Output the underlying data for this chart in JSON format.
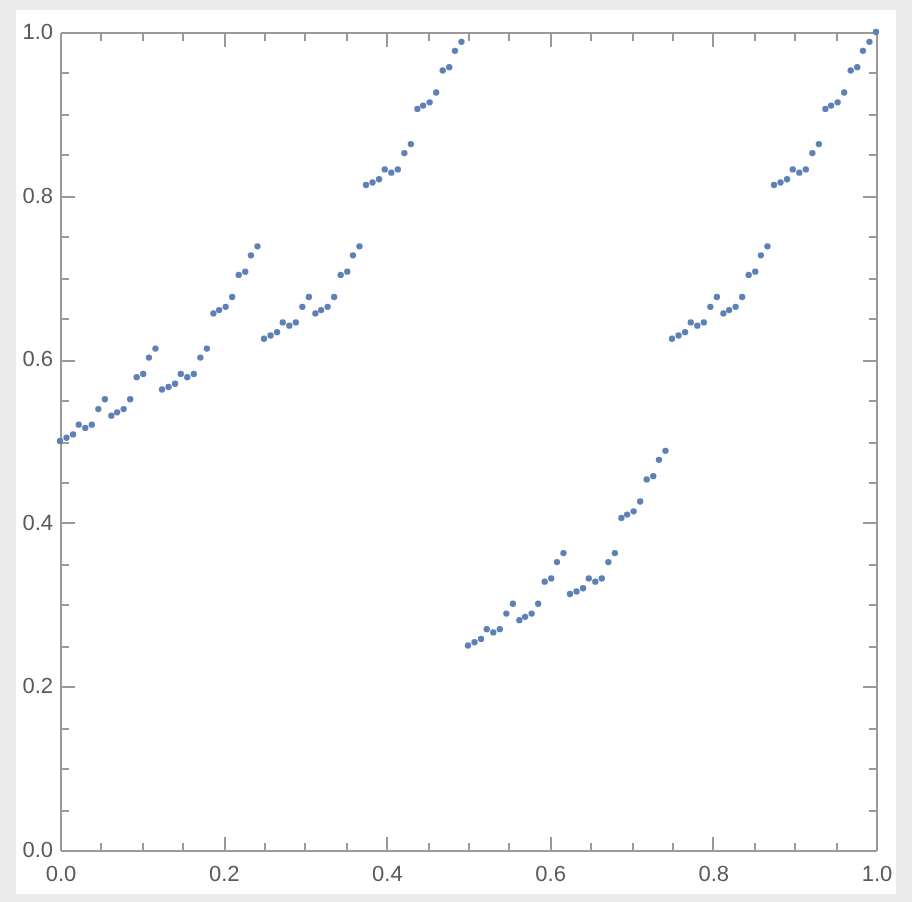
{
  "chart_data": {
    "type": "scatter",
    "marker": "circle",
    "xlim": [
      0,
      1
    ],
    "ylim": [
      0,
      1
    ],
    "xticks": [
      {
        "value": 0,
        "label": "0.0"
      },
      {
        "value": 0.05,
        "label": null
      },
      {
        "value": 0.1,
        "label": null
      },
      {
        "value": 0.15,
        "label": null
      },
      0.2,
      {
        "value": 0.25,
        "label": null
      },
      {
        "value": 0.3,
        "label": null
      },
      {
        "value": 0.35,
        "label": null
      },
      0.4,
      {
        "value": 0.45,
        "label": null
      },
      {
        "value": 0.5,
        "label": null
      },
      {
        "value": 0.55,
        "label": null
      },
      0.6,
      {
        "value": 0.65,
        "label": null
      },
      {
        "value": 0.7,
        "label": null
      },
      {
        "value": 0.75,
        "label": null
      },
      0.8,
      {
        "value": 0.85,
        "label": null
      },
      {
        "value": 0.9,
        "label": null
      },
      {
        "value": 0.95,
        "label": null
      },
      {
        "value": 1,
        "label": "1.0"
      }
    ],
    "yticks": [
      {
        "value": 0,
        "label": "0.0"
      },
      {
        "value": 0.05,
        "label": null
      },
      {
        "value": 0.1,
        "label": null
      },
      {
        "value": 0.15,
        "label": null
      },
      0.2,
      {
        "value": 0.25,
        "label": null
      },
      {
        "value": 0.3,
        "label": null
      },
      {
        "value": 0.35,
        "label": null
      },
      0.4,
      {
        "value": 0.45,
        "label": null
      },
      {
        "value": 0.5,
        "label": null
      },
      {
        "value": 0.55,
        "label": null
      },
      0.6,
      {
        "value": 0.65,
        "label": null
      },
      {
        "value": 0.7,
        "label": null
      },
      {
        "value": 0.75,
        "label": null
      },
      0.8,
      {
        "value": 0.85,
        "label": null
      },
      {
        "value": 0.9,
        "label": null
      },
      {
        "value": 0.95,
        "label": null
      },
      {
        "value": 1,
        "label": "1.0"
      }
    ],
    "series": [
      {
        "color": "#5e81b5",
        "x": [
          0,
          0.008,
          0.016,
          0.023,
          0.031,
          0.039,
          0.047,
          0.055,
          0.063,
          0.07,
          0.078,
          0.086,
          0.094,
          0.102,
          0.109,
          0.117,
          0.125,
          0.133,
          0.141,
          0.148,
          0.156,
          0.164,
          0.172,
          0.18,
          0.188,
          0.195,
          0.203,
          0.211,
          0.219,
          0.227,
          0.234,
          0.242,
          0.25,
          0.258,
          0.266,
          0.273,
          0.281,
          0.289,
          0.297,
          0.305,
          0.313,
          0.32,
          0.328,
          0.336,
          0.344,
          0.352,
          0.359,
          0.367,
          0.375,
          0.383,
          0.391,
          0.398,
          0.406,
          0.414,
          0.422,
          0.43,
          0.438,
          0.445,
          0.453,
          0.461,
          0.469,
          0.477,
          0.484,
          0.492,
          0.5,
          0.508,
          0.516,
          0.523,
          0.531,
          0.539,
          0.547,
          0.555,
          0.563,
          0.57,
          0.578,
          0.586,
          0.594,
          0.602,
          0.609,
          0.617,
          0.625,
          0.633,
          0.641,
          0.648,
          0.656,
          0.664,
          0.672,
          0.68,
          0.688,
          0.695,
          0.703,
          0.711,
          0.719,
          0.727,
          0.734,
          0.742,
          0.75,
          0.758,
          0.766,
          0.773,
          0.781,
          0.789,
          0.797,
          0.805,
          0.813,
          0.82,
          0.828,
          0.836,
          0.844,
          0.852,
          0.859,
          0.867,
          0.875,
          0.883,
          0.891,
          0.898,
          0.906,
          0.914,
          0.922,
          0.93,
          0.938,
          0.945,
          0.953,
          0.961,
          0.969,
          0.977,
          0.984,
          0.992,
          1
        ],
        "values": [
          0.5,
          0.504,
          0.508,
          0.52,
          0.516,
          0.52,
          0.539,
          0.551,
          0.531,
          0.535,
          0.539,
          0.551,
          0.578,
          0.582,
          0.602,
          0.613,
          0.563,
          0.566,
          0.57,
          0.582,
          0.578,
          0.582,
          0.602,
          0.613,
          0.656,
          0.66,
          0.664,
          0.676,
          0.703,
          0.707,
          0.727,
          0.738,
          0.625,
          0.629,
          0.633,
          0.645,
          0.641,
          0.645,
          0.664,
          0.676,
          0.656,
          0.66,
          0.664,
          0.676,
          0.703,
          0.707,
          0.727,
          0.738,
          0.813,
          0.816,
          0.82,
          0.832,
          0.828,
          0.832,
          0.852,
          0.863,
          0.906,
          0.91,
          0.914,
          0.926,
          0.953,
          0.957,
          0.977,
          0.988,
          0.25,
          0.254,
          0.258,
          0.27,
          0.266,
          0.27,
          0.289,
          0.301,
          0.281,
          0.285,
          0.289,
          0.301,
          0.328,
          0.332,
          0.352,
          0.363,
          0.313,
          0.316,
          0.32,
          0.332,
          0.328,
          0.332,
          0.352,
          0.363,
          0.406,
          0.41,
          0.414,
          0.426,
          0.453,
          0.457,
          0.477,
          0.488,
          0.625,
          0.629,
          0.633,
          0.645,
          0.641,
          0.645,
          0.664,
          0.676,
          0.656,
          0.66,
          0.664,
          0.676,
          0.703,
          0.707,
          0.727,
          0.738,
          0.813,
          0.816,
          0.82,
          0.832,
          0.828,
          0.832,
          0.852,
          0.863,
          0.906,
          0.91,
          0.914,
          0.926,
          0.953,
          0.957,
          0.977,
          0.988,
          1
        ]
      }
    ]
  }
}
